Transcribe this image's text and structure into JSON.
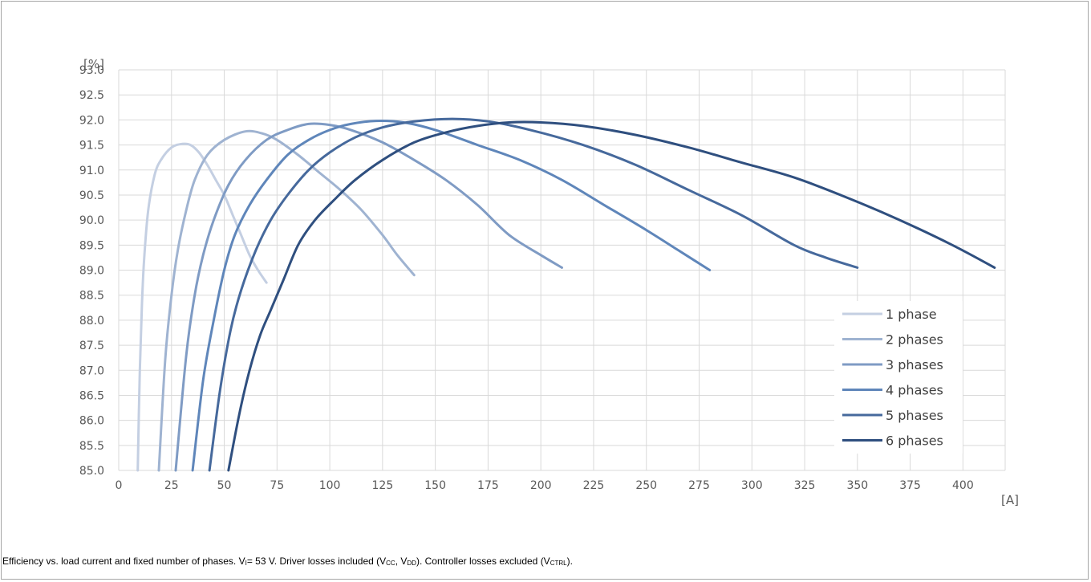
{
  "chart_data": {
    "type": "line",
    "ylabel": "[%]",
    "xlabel": "[A]",
    "xlim": [
      0,
      415
    ],
    "ylim": [
      85.0,
      93.0
    ],
    "x_ticks": [
      "0",
      "25",
      "50",
      "75",
      "100",
      "125",
      "150",
      "175",
      "200",
      "225",
      "250",
      "275",
      "300",
      "325",
      "350",
      "375",
      "400"
    ],
    "y_ticks": [
      "85.0",
      "85.5",
      "86.0",
      "86.5",
      "87.0",
      "87.5",
      "88.0",
      "88.5",
      "89.0",
      "89.5",
      "90.0",
      "90.5",
      "91.0",
      "91.5",
      "92.0",
      "92.5",
      "93.0"
    ],
    "grid": true,
    "legend_position": "right",
    "series": [
      {
        "name": "1 phase",
        "color": "#c4cfe2",
        "points": [
          [
            9,
            85.0
          ],
          [
            10,
            87.0
          ],
          [
            11,
            88.3
          ],
          [
            12,
            89.2
          ],
          [
            14,
            90.2
          ],
          [
            17,
            90.9
          ],
          [
            20,
            91.2
          ],
          [
            25,
            91.45
          ],
          [
            30,
            91.52
          ],
          [
            34,
            91.5
          ],
          [
            38,
            91.35
          ],
          [
            42,
            91.1
          ],
          [
            46,
            90.8
          ],
          [
            50,
            90.5
          ],
          [
            54,
            90.1
          ],
          [
            58,
            89.7
          ],
          [
            62,
            89.3
          ],
          [
            66,
            89.0
          ],
          [
            70,
            88.75
          ]
        ]
      },
      {
        "name": "2 phases",
        "color": "#9fb3d1",
        "points": [
          [
            19,
            85.0
          ],
          [
            22,
            87.2
          ],
          [
            25,
            88.5
          ],
          [
            28,
            89.4
          ],
          [
            32,
            90.2
          ],
          [
            36,
            90.8
          ],
          [
            42,
            91.3
          ],
          [
            50,
            91.6
          ],
          [
            60,
            91.77
          ],
          [
            68,
            91.73
          ],
          [
            75,
            91.6
          ],
          [
            85,
            91.3
          ],
          [
            95,
            90.95
          ],
          [
            105,
            90.6
          ],
          [
            115,
            90.2
          ],
          [
            125,
            89.7
          ],
          [
            132,
            89.3
          ],
          [
            140,
            88.9
          ]
        ]
      },
      {
        "name": "3 phases",
        "color": "#7f9bc4",
        "points": [
          [
            27,
            85.0
          ],
          [
            32,
            87.3
          ],
          [
            36,
            88.5
          ],
          [
            40,
            89.3
          ],
          [
            45,
            90.0
          ],
          [
            52,
            90.7
          ],
          [
            60,
            91.2
          ],
          [
            70,
            91.6
          ],
          [
            80,
            91.8
          ],
          [
            90,
            91.92
          ],
          [
            100,
            91.9
          ],
          [
            110,
            91.8
          ],
          [
            125,
            91.55
          ],
          [
            140,
            91.2
          ],
          [
            155,
            90.8
          ],
          [
            170,
            90.3
          ],
          [
            185,
            89.7
          ],
          [
            200,
            89.3
          ],
          [
            210,
            89.05
          ]
        ]
      },
      {
        "name": "4 phases",
        "color": "#5f86ba",
        "points": [
          [
            35,
            85.0
          ],
          [
            40,
            86.8
          ],
          [
            45,
            88.0
          ],
          [
            50,
            89.0
          ],
          [
            55,
            89.7
          ],
          [
            62,
            90.3
          ],
          [
            70,
            90.8
          ],
          [
            80,
            91.3
          ],
          [
            90,
            91.6
          ],
          [
            100,
            91.8
          ],
          [
            110,
            91.92
          ],
          [
            122,
            91.98
          ],
          [
            135,
            91.95
          ],
          [
            150,
            91.8
          ],
          [
            170,
            91.5
          ],
          [
            190,
            91.2
          ],
          [
            210,
            90.8
          ],
          [
            230,
            90.3
          ],
          [
            250,
            89.8
          ],
          [
            265,
            89.4
          ],
          [
            280,
            89.0
          ]
        ]
      },
      {
        "name": "5 phases",
        "color": "#46699c",
        "points": [
          [
            43,
            85.0
          ],
          [
            48,
            86.6
          ],
          [
            53,
            87.8
          ],
          [
            58,
            88.6
          ],
          [
            65,
            89.4
          ],
          [
            72,
            90.0
          ],
          [
            80,
            90.5
          ],
          [
            90,
            91.0
          ],
          [
            100,
            91.35
          ],
          [
            112,
            91.65
          ],
          [
            125,
            91.85
          ],
          [
            140,
            91.97
          ],
          [
            158,
            92.02
          ],
          [
            175,
            91.97
          ],
          [
            195,
            91.8
          ],
          [
            220,
            91.5
          ],
          [
            245,
            91.1
          ],
          [
            270,
            90.6
          ],
          [
            295,
            90.1
          ],
          [
            320,
            89.5
          ],
          [
            335,
            89.25
          ],
          [
            350,
            89.05
          ]
        ]
      },
      {
        "name": "6 phases",
        "color": "#2f4f7f",
        "points": [
          [
            52,
            85.0
          ],
          [
            57,
            86.1
          ],
          [
            62,
            87.0
          ],
          [
            67,
            87.7
          ],
          [
            72,
            88.2
          ],
          [
            78,
            88.8
          ],
          [
            85,
            89.5
          ],
          [
            93,
            90.0
          ],
          [
            102,
            90.4
          ],
          [
            112,
            90.8
          ],
          [
            125,
            91.2
          ],
          [
            140,
            91.55
          ],
          [
            155,
            91.75
          ],
          [
            170,
            91.88
          ],
          [
            185,
            91.95
          ],
          [
            200,
            91.95
          ],
          [
            220,
            91.88
          ],
          [
            245,
            91.7
          ],
          [
            270,
            91.45
          ],
          [
            295,
            91.15
          ],
          [
            320,
            90.85
          ],
          [
            345,
            90.45
          ],
          [
            370,
            90.0
          ],
          [
            395,
            89.5
          ],
          [
            415,
            89.05
          ]
        ]
      }
    ]
  },
  "caption": {
    "text1": "Efficiency vs. load current and fixed number of phases. V",
    "sub1": "I",
    "text2": "= 53 V. Driver losses included (V",
    "sub2": "CC",
    "text3": ", V",
    "sub3": "DD",
    "text4": "). Controller losses excluded (V",
    "sub4": "CTRL",
    "text5": ")."
  }
}
